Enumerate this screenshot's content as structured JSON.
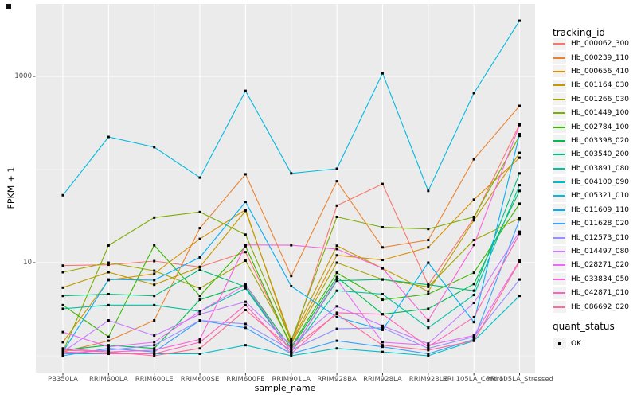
{
  "chart_data": {
    "type": "line",
    "title": "",
    "xlabel": "sample_name",
    "ylabel": "FPKM + 1",
    "y_scale": "log10",
    "y_ticks": [
      {
        "value": 10,
        "label": "10"
      },
      {
        "value": 1000,
        "label": "1000"
      }
    ],
    "y_minor_breaks": [
      1,
      100
    ],
    "y_range_approx": [
      0.9,
      4200
    ],
    "grid": "on",
    "legend_position": "right",
    "categories": [
      "PB350LA",
      "RRIM600LA",
      "RRIM600LE",
      "RRIM600SE",
      "RRIM600PE",
      "RRIM901LA",
      "RRIM928BA",
      "RRIM928LA",
      "RRIM928LE",
      "RRII105LA_Control",
      "RRII105LA_Stressed"
    ],
    "series": [
      {
        "name": "Hb_000062_300",
        "color": "#F8766D",
        "values": [
          9.3,
          9.5,
          10.4,
          9.0,
          13,
          1.3,
          41,
          70,
          5.8,
          30,
          305
        ]
      },
      {
        "name": "Hb_000239_110",
        "color": "#EA8331",
        "values": [
          1.1,
          1.45,
          2.4,
          23.5,
          89,
          7.2,
          75,
          14.6,
          17.5,
          129,
          483
        ]
      },
      {
        "name": "Hb_000656_410",
        "color": "#D89000",
        "values": [
          1.4,
          6.5,
          7.6,
          18,
          37,
          1.4,
          12,
          10.7,
          14.6,
          47.5,
          134
        ]
      },
      {
        "name": "Hb_001164_030",
        "color": "#C09B00",
        "values": [
          5.4,
          7.9,
          5.8,
          9.0,
          36,
          1.5,
          15.2,
          8.7,
          4.9,
          28.5,
          151
        ]
      },
      {
        "name": "Hb_001266_030",
        "color": "#A3A500",
        "values": [
          7.9,
          10,
          8.2,
          5.3,
          10.5,
          1.35,
          10,
          6.6,
          5.5,
          17.5,
          30
        ]
      },
      {
        "name": "Hb_001449_100",
        "color": "#7CAE00",
        "values": [
          1.1,
          15.3,
          30.5,
          35,
          20,
          1.45,
          31,
          24,
          23,
          31,
          230
        ]
      },
      {
        "name": "Hb_002784_100",
        "color": "#39B600",
        "values": [
          3.5,
          1.6,
          15.4,
          4.4,
          15,
          1.25,
          7.8,
          4.0,
          4.6,
          7.8,
          43
        ]
      },
      {
        "name": "Hb_003398_020",
        "color": "#00BB4E",
        "values": [
          1.15,
          1.3,
          1.2,
          4.0,
          5.8,
          1.2,
          7.0,
          2.8,
          3.2,
          5.9,
          59
        ]
      },
      {
        "name": "Hb_003540_200",
        "color": "#00BF7D",
        "values": [
          4.4,
          4.6,
          4.4,
          8.4,
          5.5,
          1.1,
          6.4,
          6.6,
          5.8,
          5.0,
          91
        ]
      },
      {
        "name": "Hb_003891_080",
        "color": "#00C1A3",
        "values": [
          3.2,
          3.5,
          3.5,
          3.0,
          5.3,
          1.1,
          5.0,
          4.6,
          2.0,
          4.5,
          68
        ]
      },
      {
        "name": "Hb_004100_090",
        "color": "#00BFC4",
        "values": [
          1.05,
          1.05,
          1.05,
          1.05,
          1.3,
          1.0,
          1.2,
          1.1,
          1.0,
          1.45,
          4.4
        ]
      },
      {
        "name": "Hb_005321_010",
        "color": "#00BAE0",
        "values": [
          53,
          224,
          174,
          82,
          700,
          91,
          102,
          1080,
          59,
          662,
          3960
        ]
      },
      {
        "name": "Hb_011609_110",
        "color": "#00B0F6",
        "values": [
          1.1,
          6.6,
          6.5,
          11.4,
          45,
          5.6,
          2.6,
          1.9,
          10,
          2.3,
          240
        ]
      },
      {
        "name": "Hb_011628_020",
        "color": "#35A2FF",
        "values": [
          1.0,
          1.2,
          1.1,
          2.4,
          2.0,
          1.05,
          1.45,
          1.25,
          1.05,
          1.5,
          29
        ]
      },
      {
        "name": "Hb_012573_010",
        "color": "#9590FF",
        "values": [
          1.05,
          1.15,
          1.3,
          2.4,
          2.2,
          1.15,
          1.95,
          2.0,
          1.2,
          1.6,
          6.6
        ]
      },
      {
        "name": "Hb_014497_080",
        "color": "#C77CFF",
        "values": [
          1.1,
          2.4,
          1.65,
          2.8,
          3.8,
          1.3,
          3.4,
          2.1,
          1.35,
          3.7,
          21.5
        ]
      },
      {
        "name": "Hb_028271_020",
        "color": "#E76BF3",
        "values": [
          1.8,
          1.25,
          1.4,
          3.0,
          5.8,
          1.1,
          6.6,
          1.4,
          1.3,
          1.65,
          10.5
        ]
      },
      {
        "name": "Hb_033834_050",
        "color": "#FA62DB",
        "values": [
          1.2,
          1.1,
          1.15,
          1.5,
          15.5,
          15.4,
          14,
          8.7,
          2.4,
          15.5,
          300
        ]
      },
      {
        "name": "Hb_042871_010",
        "color": "#FF62BC",
        "values": [
          1.1,
          1.05,
          1.05,
          1.4,
          3.5,
          1.05,
          2.9,
          2.8,
          1.25,
          2.6,
          20.4
        ]
      },
      {
        "name": "Hb_086692_020",
        "color": "#FF6A98",
        "values": [
          1.15,
          1.1,
          1.0,
          1.2,
          3.1,
          1.2,
          2.8,
          1.3,
          1.15,
          1.45,
          10.3
        ]
      }
    ],
    "point_color": "#000000",
    "point_shape": "square",
    "colors": {
      "panel_bg": "#EBEBEB",
      "grid": "#FFFFFF",
      "tick": "#333333",
      "tick_text": "#4d4d4d",
      "legend_key_bg": "#F2F2F2"
    },
    "legend": {
      "tracking_title": "tracking_id",
      "quant_title": "quant_status",
      "quant_value": "OK"
    }
  }
}
